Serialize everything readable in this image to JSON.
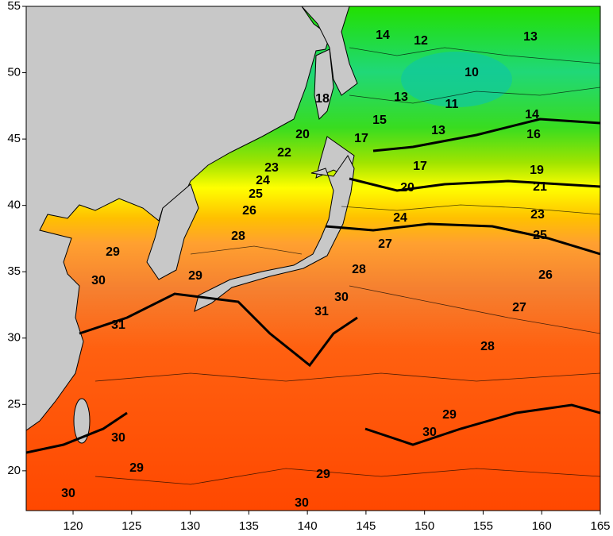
{
  "map": {
    "xlim": [
      116,
      165
    ],
    "ylim": [
      17,
      55
    ],
    "xticks": [
      120,
      125,
      130,
      135,
      140,
      145,
      150,
      155,
      160,
      165
    ],
    "yticks": [
      20,
      25,
      30,
      35,
      40,
      45,
      50,
      55
    ],
    "contour_labels": [
      14,
      12,
      13,
      10,
      18,
      13,
      11,
      15,
      13,
      14,
      20,
      17,
      16,
      22,
      23,
      17,
      19,
      24,
      25,
      20,
      21,
      26,
      23,
      24,
      25,
      28,
      27,
      29,
      28,
      26,
      30,
      29,
      30,
      31,
      27,
      31,
      28,
      29,
      30,
      30,
      29,
      29,
      30,
      30
    ]
  }
}
